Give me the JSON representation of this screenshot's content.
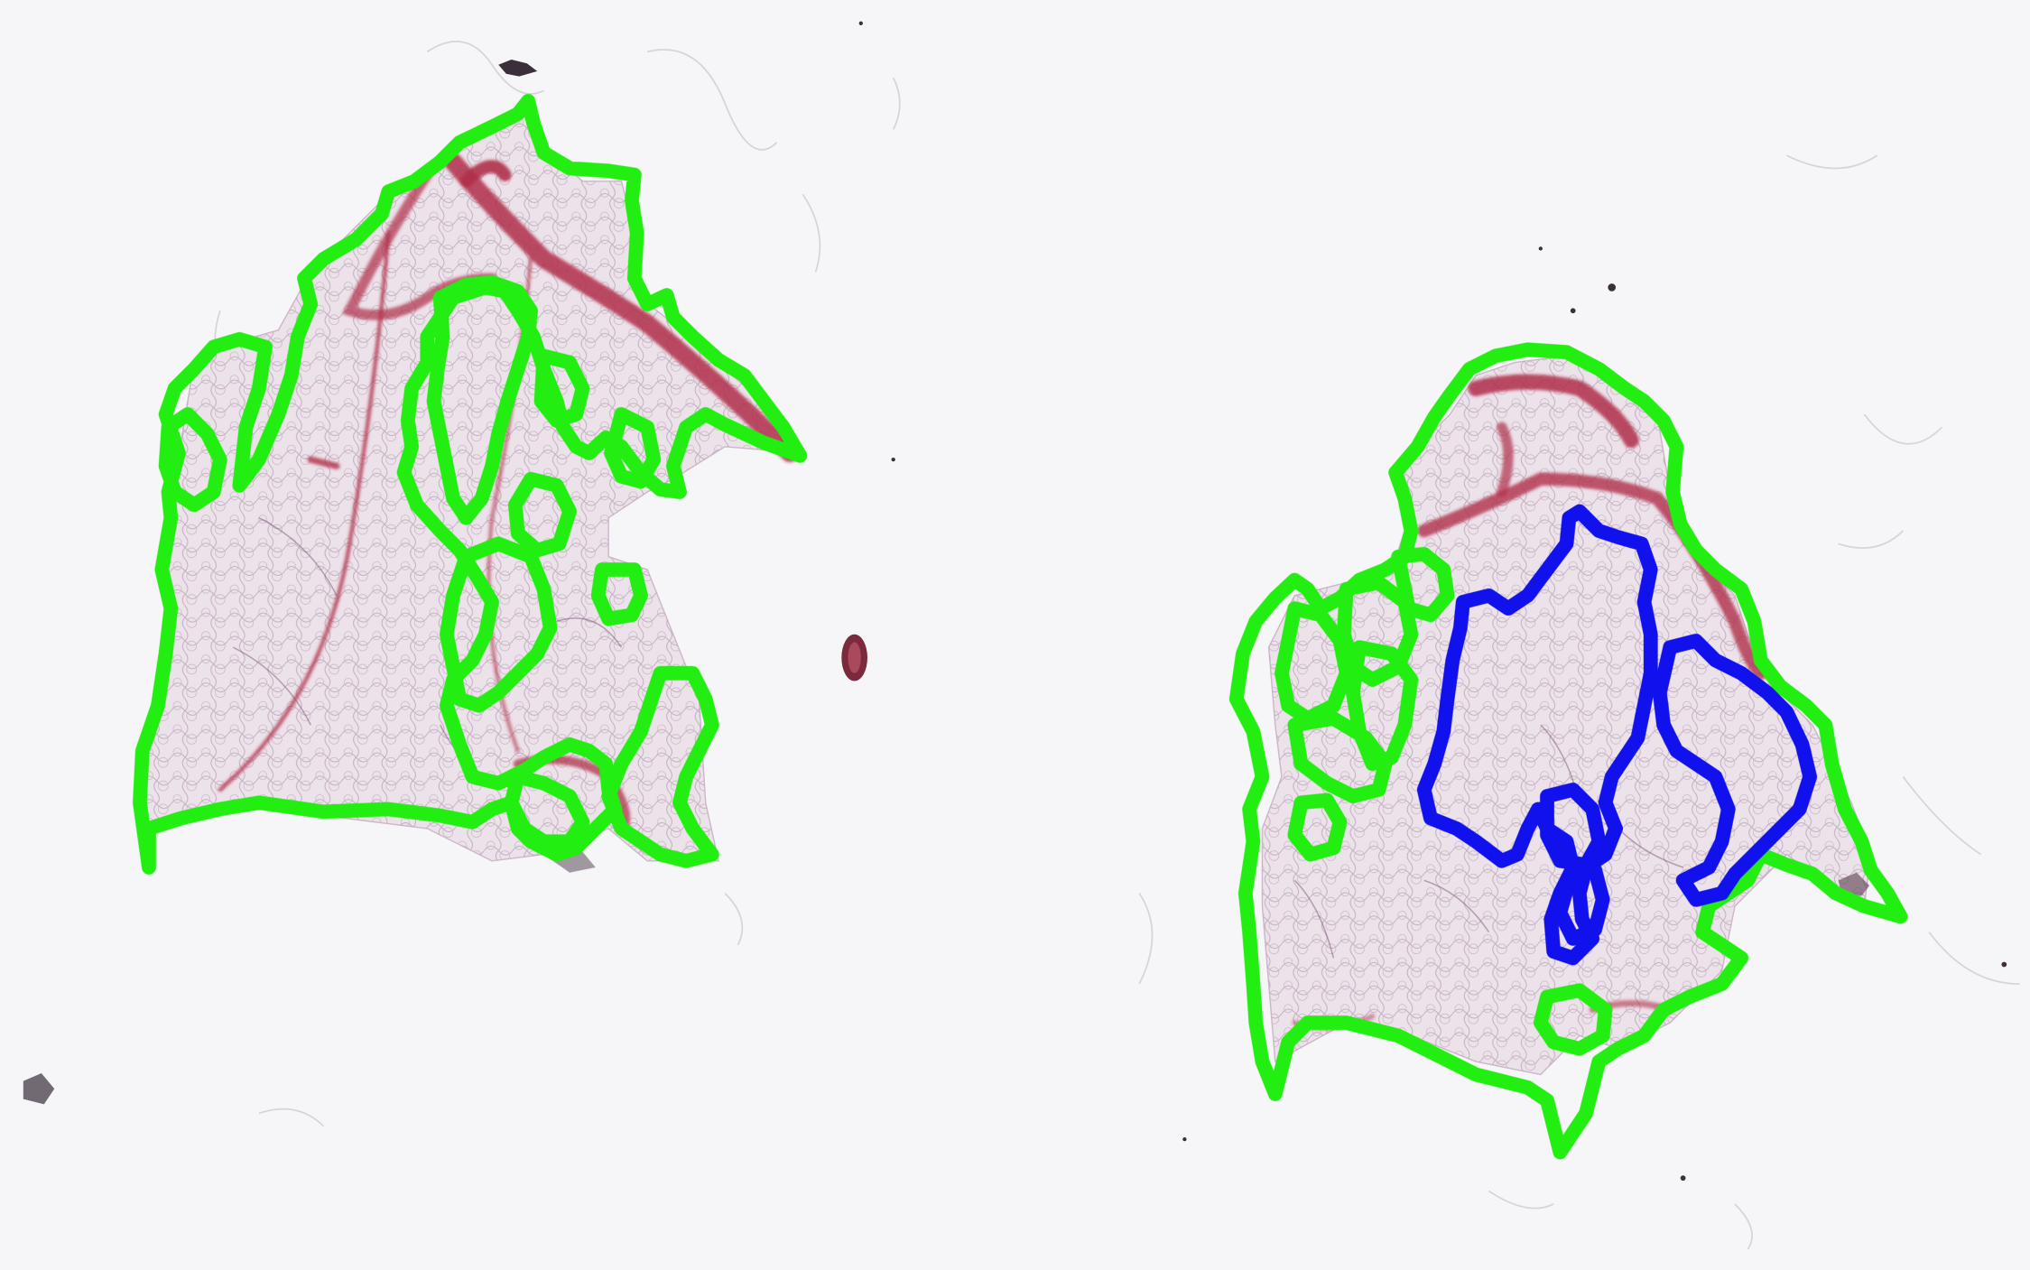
{
  "image": {
    "kind": "histology-slide-with-annotations",
    "background_color": "#f6f5f7",
    "tissue_fill_color": "#ece3ea",
    "stroma_color": "#b0304a",
    "fiber_color": "#7a5a78",
    "debris_color": "#3a2f3a"
  },
  "annotations": {
    "tissue_outline_color": "#22ee11",
    "region_outline_color": "#1111ee"
  }
}
